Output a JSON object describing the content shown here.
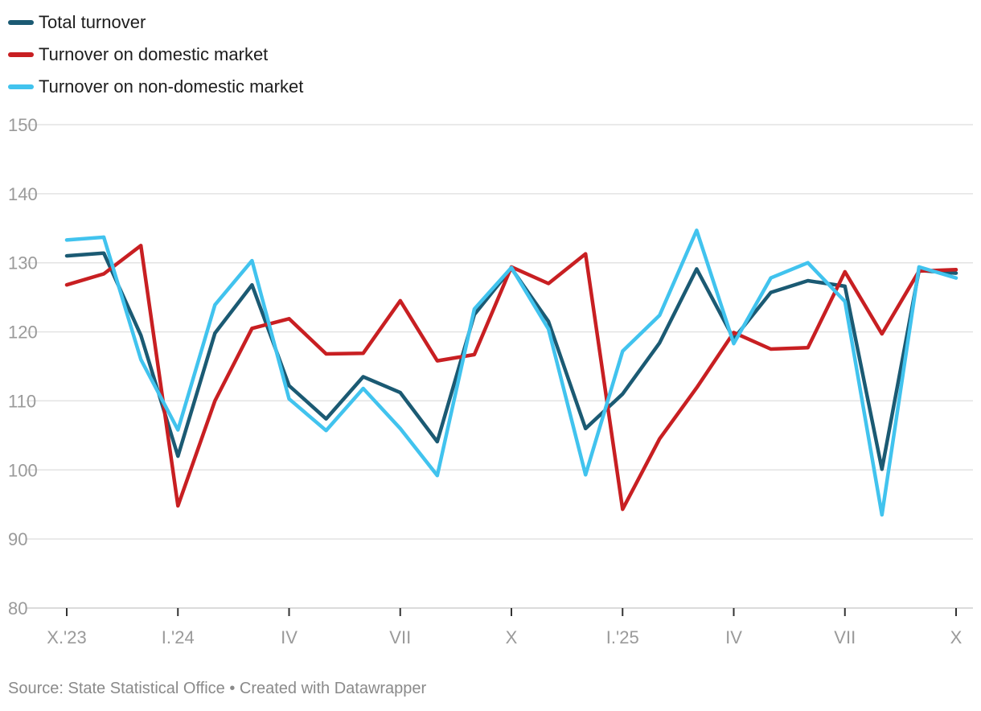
{
  "source_text": "Source: State Statistical Office • Created with Datawrapper",
  "chart_data": {
    "type": "line",
    "xlabel": "",
    "ylabel": "",
    "ylim": [
      80,
      150
    ],
    "yticks": [
      80,
      90,
      100,
      110,
      120,
      130,
      140,
      150
    ],
    "grid": true,
    "legend_position": "top-left",
    "x": [
      "X.'23",
      "XI.'23",
      "XII.'23",
      "I.'24",
      "II.'24",
      "III.'24",
      "IV.'24",
      "V.'24",
      "VI.'24",
      "VII.'24",
      "VIII.'24",
      "IX.'24",
      "X.'24",
      "XI.'24",
      "XII.'24",
      "I.'25",
      "II.'25",
      "III.'25",
      "IV.'25",
      "V.'25",
      "VI.'25",
      "VII.'25",
      "VIII.'25",
      "IX.'25",
      "X.'25"
    ],
    "xtick_labels": [
      "X.'23",
      "I.'24",
      "IV",
      "VII",
      "X",
      "I.'25",
      "IV",
      "VII",
      "X"
    ],
    "xtick_indices": [
      0,
      3,
      6,
      9,
      12,
      15,
      18,
      21,
      24
    ],
    "series": [
      {
        "name": "Total turnover",
        "color": "#1b5a73",
        "values": [
          131.0,
          131.4,
          119.5,
          102.0,
          119.8,
          126.8,
          112.2,
          107.4,
          113.5,
          111.2,
          104.1,
          122.5,
          129.2,
          121.5,
          106.0,
          111.0,
          118.4,
          129.1,
          119.0,
          125.7,
          127.4,
          126.6,
          100.1,
          128.9,
          128.5
        ]
      },
      {
        "name": "Turnover on domestic market",
        "color": "#c81f22",
        "values": [
          126.8,
          128.4,
          132.5,
          94.8,
          110.0,
          120.5,
          121.9,
          116.8,
          116.9,
          124.5,
          115.8,
          116.7,
          129.4,
          127.0,
          131.3,
          94.3,
          104.5,
          111.9,
          119.9,
          117.5,
          117.7,
          128.7,
          119.7,
          128.8,
          129.0
        ]
      },
      {
        "name": "Turnover on non-domestic market",
        "color": "#41c3ee",
        "values": [
          133.3,
          133.7,
          116.0,
          105.8,
          123.9,
          130.3,
          110.3,
          105.7,
          111.8,
          106.0,
          99.2,
          123.3,
          129.3,
          120.4,
          99.3,
          117.2,
          122.4,
          134.7,
          118.3,
          127.8,
          130.0,
          124.4,
          93.5,
          129.4,
          127.8
        ]
      }
    ]
  }
}
